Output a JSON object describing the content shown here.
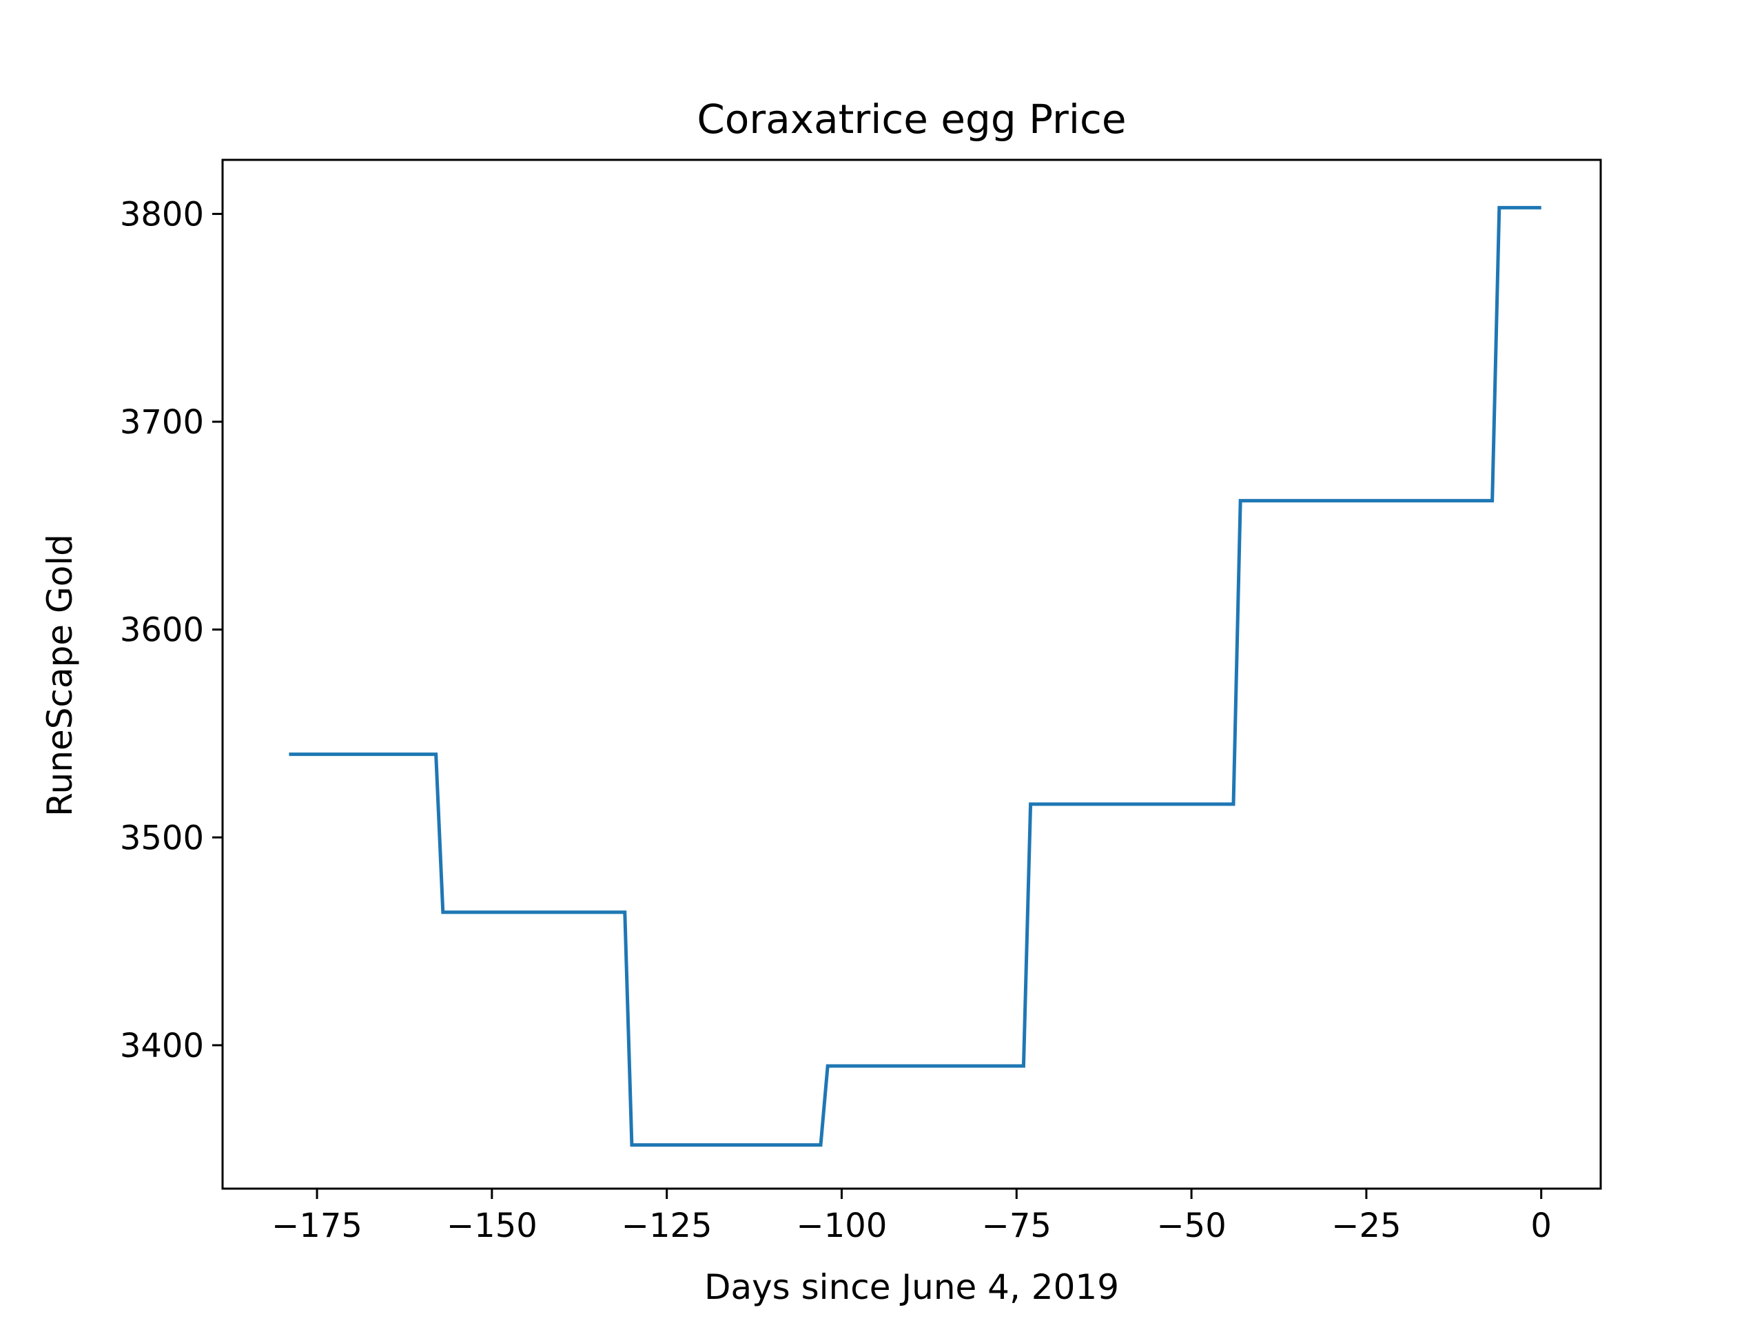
{
  "chart_data": {
    "type": "line",
    "title": "Coraxatrice egg Price",
    "xlabel": "Days since June 4, 2019",
    "ylabel": "RuneScape Gold",
    "xlim": [
      -188.5,
      8.5
    ],
    "ylim": [
      3331,
      3826
    ],
    "x_ticks": [
      -175,
      -150,
      -125,
      -100,
      -75,
      -50,
      -25,
      0
    ],
    "x_tick_labels": [
      "−175",
      "−150",
      "−125",
      "−100",
      "−75",
      "−50",
      "−25",
      "0"
    ],
    "y_ticks": [
      3400,
      3500,
      3600,
      3700,
      3800
    ],
    "y_tick_labels": [
      "3400",
      "3500",
      "3600",
      "3700",
      "3800"
    ],
    "grid": false,
    "legend": false,
    "series": [
      {
        "color": "#1f77b4",
        "x": [
          -179,
          -158,
          -157,
          -131,
          -130,
          -103,
          -102,
          -74,
          -73,
          -44,
          -43,
          -7,
          -6,
          0
        ],
        "y": [
          3540,
          3540,
          3464,
          3464,
          3352,
          3352,
          3390,
          3390,
          3516,
          3516,
          3662,
          3662,
          3803,
          3803
        ]
      }
    ]
  }
}
